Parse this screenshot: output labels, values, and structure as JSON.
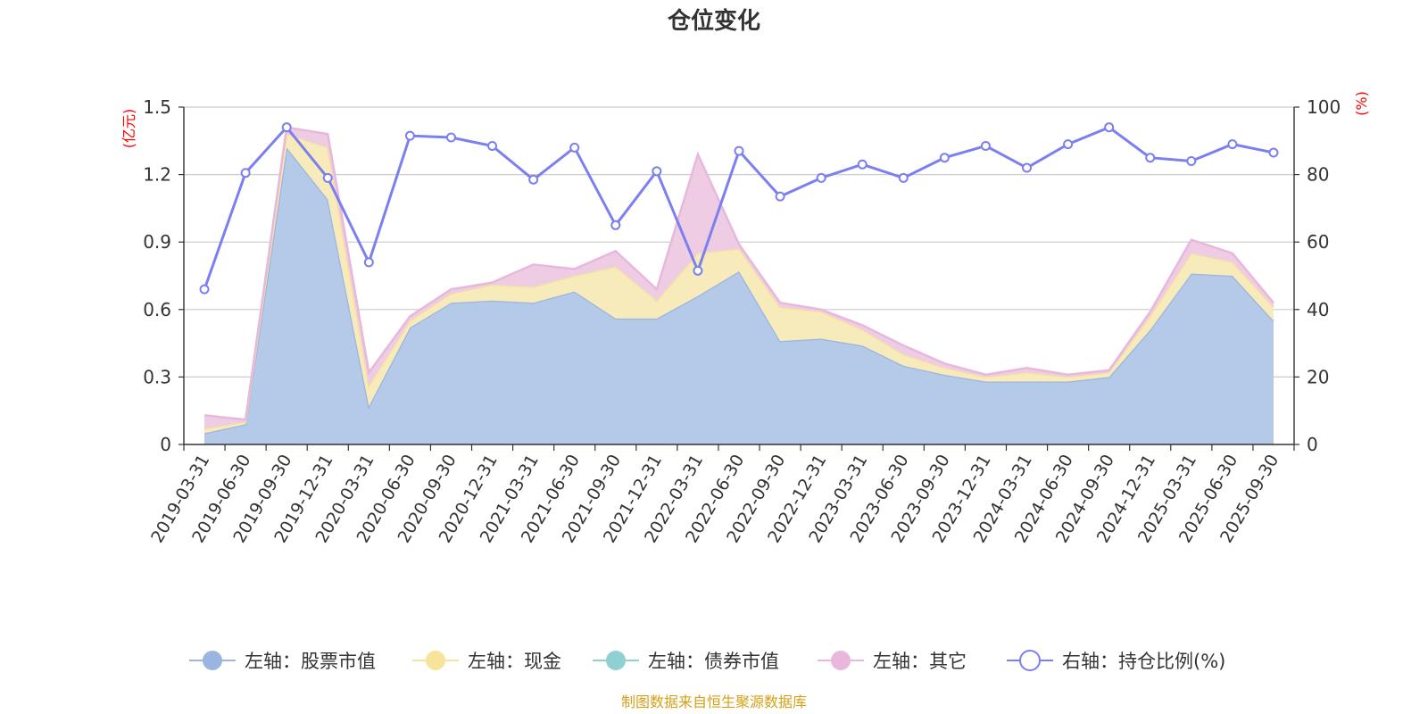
{
  "chart_data": {
    "type": "area",
    "title": "仓位变化",
    "left_axis_unit": "(亿元)",
    "right_axis_unit": "(%)",
    "ylim_left": [
      0,
      1.5
    ],
    "yticks_left": [
      "0",
      "0.3",
      "0.6",
      "0.9",
      "1.2",
      "1.5"
    ],
    "ylim_right": [
      0,
      100
    ],
    "yticks_right": [
      "0",
      "20",
      "40",
      "60",
      "80",
      "100"
    ],
    "categories": [
      "2019-03-31",
      "2019-06-30",
      "2019-09-30",
      "2019-12-31",
      "2020-03-31",
      "2020-06-30",
      "2020-09-30",
      "2020-12-31",
      "2021-03-31",
      "2021-06-30",
      "2021-09-30",
      "2021-12-31",
      "2022-03-31",
      "2022-06-30",
      "2022-09-30",
      "2022-12-31",
      "2023-03-31",
      "2023-06-30",
      "2023-09-30",
      "2023-12-31",
      "2024-03-31",
      "2024-06-30",
      "2024-09-30",
      "2024-12-31",
      "2025-03-31",
      "2025-06-30",
      "2025-09-30"
    ],
    "series": [
      {
        "name": "左轴：股票市值",
        "axis": "left",
        "type": "stacked-area",
        "color": "#9bb5e0",
        "fill": "#b5c9e8",
        "values": [
          0.05,
          0.09,
          1.32,
          1.09,
          0.17,
          0.52,
          0.63,
          0.64,
          0.63,
          0.68,
          0.56,
          0.56,
          0.66,
          0.77,
          0.46,
          0.47,
          0.44,
          0.35,
          0.31,
          0.28,
          0.28,
          0.28,
          0.3,
          0.51,
          0.76,
          0.75,
          0.55
        ]
      },
      {
        "name": "左轴：现金",
        "axis": "left",
        "type": "stacked-area",
        "color": "#f7e49a",
        "fill": "#f8ebbb",
        "values": [
          0.02,
          0.01,
          0.06,
          0.23,
          0.09,
          0.03,
          0.04,
          0.07,
          0.07,
          0.07,
          0.23,
          0.08,
          0.19,
          0.1,
          0.15,
          0.12,
          0.07,
          0.05,
          0.03,
          0.02,
          0.04,
          0.02,
          0.02,
          0.06,
          0.09,
          0.06,
          0.06
        ]
      },
      {
        "name": "左轴：债券市值",
        "axis": "left",
        "type": "stacked-area",
        "color": "#8fd1d3",
        "fill": "#a7dcde",
        "values": [
          0,
          0,
          0,
          0,
          0,
          0,
          0,
          0,
          0,
          0,
          0,
          0,
          0,
          0,
          0,
          0,
          0,
          0,
          0,
          0,
          0,
          0,
          0,
          0,
          0,
          0,
          0
        ]
      },
      {
        "name": "左轴：其它",
        "axis": "left",
        "type": "stacked-area",
        "color": "#e8b8dc",
        "fill": "#eecde4",
        "values": [
          0.06,
          0.01,
          0.03,
          0.06,
          0.06,
          0.02,
          0.02,
          0.01,
          0.1,
          0.03,
          0.07,
          0.05,
          0.44,
          0.02,
          0.02,
          0.01,
          0.02,
          0.04,
          0.02,
          0.01,
          0.02,
          0.01,
          0.01,
          0.02,
          0.06,
          0.04,
          0.02
        ]
      },
      {
        "name": "右轴：持仓比例(%)",
        "axis": "right",
        "type": "line",
        "color": "#7b7ff0",
        "values": [
          46,
          80.5,
          94,
          79,
          54,
          91.5,
          91,
          88.5,
          78.5,
          88,
          65,
          81,
          51.5,
          87,
          73.5,
          79,
          83,
          79,
          85,
          88.5,
          82,
          89,
          94,
          85,
          84,
          89,
          86.5
        ]
      }
    ]
  },
  "source_note": "制图数据来自恒生聚源数据库"
}
